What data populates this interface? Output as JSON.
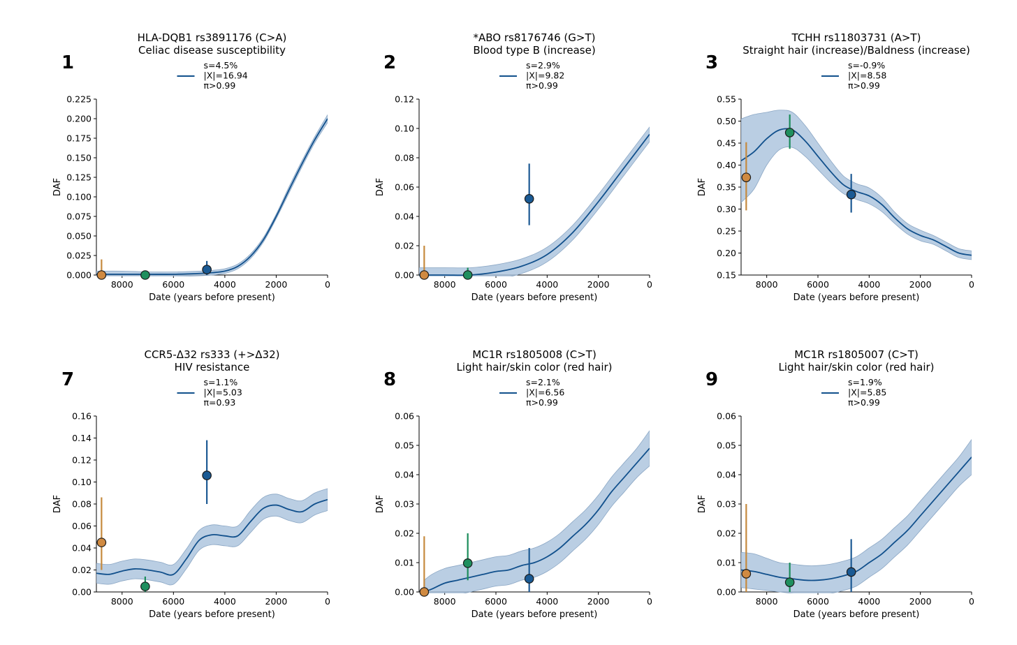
{
  "figure": {
    "xlabel": "Date (years before present)",
    "ylabel": "DAF",
    "band_color": "#a9c2dc",
    "line_color": "#11508c",
    "point_colors": [
      "#d08a41",
      "#1f8f5e",
      "#1a5a94"
    ],
    "errorbar_colors": [
      "#c68a3e",
      "#1b8c5a",
      "#1d5a94"
    ]
  },
  "chart_data": [
    {
      "type": "line",
      "panel_label": "1",
      "title": [
        "HLA-DQB1 rs3891176 (C>A)",
        "Celiac disease susceptibility"
      ],
      "legend": [
        "s=4.5%",
        "|X|=16.94",
        "π>0.99"
      ],
      "xlabel": "Date (years before present)",
      "ylabel": "DAF",
      "xlim": [
        9000,
        0
      ],
      "ylim": [
        0,
        0.225
      ],
      "xticks": [
        8000,
        6000,
        4000,
        2000,
        0
      ],
      "yticks": [
        "0.000",
        "0.025",
        "0.050",
        "0.075",
        "0.100",
        "0.125",
        "0.150",
        "0.175",
        "0.200",
        "0.225"
      ],
      "series": [
        {
          "name": "trajectory",
          "x": [
            9000,
            8000,
            7000,
            6000,
            5000,
            4500,
            4000,
            3500,
            3000,
            2500,
            2000,
            1500,
            1000,
            500,
            0
          ],
          "y": [
            0.001,
            0.001,
            0.001,
            0.001,
            0.002,
            0.003,
            0.005,
            0.011,
            0.024,
            0.045,
            0.075,
            0.109,
            0.142,
            0.173,
            0.2
          ],
          "band": [
            0.004,
            0.004,
            0.003,
            0.003,
            0.003,
            0.003,
            0.003,
            0.003,
            0.003,
            0.003,
            0.003,
            0.004,
            0.004,
            0.004,
            0.005
          ]
        }
      ],
      "points": [
        {
          "x": 8800,
          "y": 0.0,
          "err": [
            0.0,
            0.02
          ]
        },
        {
          "x": 7100,
          "y": 0.0,
          "err": [
            0.0,
            0.0
          ]
        },
        {
          "x": 4700,
          "y": 0.007,
          "err": [
            0.0,
            0.018
          ]
        }
      ]
    },
    {
      "type": "line",
      "panel_label": "2",
      "title": [
        "*ABO rs8176746 (G>T)",
        "Blood type B (increase)"
      ],
      "legend": [
        "s=2.9%",
        "|X|=9.82",
        "π>0.99"
      ],
      "xlabel": "Date (years before present)",
      "ylabel": "DAF",
      "xlim": [
        9000,
        0
      ],
      "ylim": [
        0,
        0.12
      ],
      "xticks": [
        8000,
        6000,
        4000,
        2000,
        0
      ],
      "yticks": [
        "0.00",
        "0.02",
        "0.04",
        "0.06",
        "0.08",
        "0.10",
        "0.12"
      ],
      "series": [
        {
          "name": "trajectory",
          "x": [
            9000,
            8000,
            7000,
            6000,
            5000,
            4000,
            3000,
            2000,
            1000,
            0
          ],
          "y": [
            0.0,
            0.0,
            0.0,
            0.002,
            0.006,
            0.014,
            0.029,
            0.05,
            0.073,
            0.096
          ],
          "band": [
            0.005,
            0.005,
            0.005,
            0.005,
            0.005,
            0.005,
            0.005,
            0.005,
            0.005,
            0.005
          ]
        }
      ],
      "points": [
        {
          "x": 8800,
          "y": 0.0,
          "err": [
            0.0,
            0.02
          ]
        },
        {
          "x": 7100,
          "y": 0.0,
          "err": [
            0.0,
            0.005
          ]
        },
        {
          "x": 4700,
          "y": 0.052,
          "err": [
            0.034,
            0.076
          ]
        }
      ]
    },
    {
      "type": "line",
      "panel_label": "3",
      "title": [
        "TCHH rs11803731 (A>T)",
        "Straight hair (increase)/Baldness (increase)"
      ],
      "legend": [
        "s=-0.9%",
        "|X|=8.58",
        "π>0.99"
      ],
      "xlabel": "Date (years before present)",
      "ylabel": "DAF",
      "xlim": [
        9000,
        0
      ],
      "ylim": [
        0.15,
        0.55
      ],
      "xticks": [
        8000,
        6000,
        4000,
        2000,
        0
      ],
      "yticks": [
        "0.15",
        "0.20",
        "0.25",
        "0.30",
        "0.35",
        "0.40",
        "0.45",
        "0.50",
        "0.55"
      ],
      "series": [
        {
          "name": "trajectory",
          "x": [
            9000,
            8500,
            8000,
            7500,
            7000,
            6500,
            6000,
            5500,
            5000,
            4500,
            4000,
            3500,
            3000,
            2500,
            2000,
            1500,
            1000,
            500,
            0
          ],
          "y": [
            0.41,
            0.43,
            0.46,
            0.48,
            0.48,
            0.455,
            0.42,
            0.385,
            0.355,
            0.34,
            0.33,
            0.31,
            0.28,
            0.255,
            0.24,
            0.23,
            0.215,
            0.2,
            0.195
          ],
          "band": [
            0.095,
            0.085,
            0.06,
            0.045,
            0.04,
            0.035,
            0.03,
            0.025,
            0.02,
            0.018,
            0.018,
            0.016,
            0.013,
            0.012,
            0.012,
            0.01,
            0.01,
            0.01,
            0.01
          ]
        }
      ],
      "points": [
        {
          "x": 8800,
          "y": 0.372,
          "err": [
            0.297,
            0.452
          ]
        },
        {
          "x": 7100,
          "y": 0.474,
          "err": [
            0.437,
            0.515
          ]
        },
        {
          "x": 4700,
          "y": 0.333,
          "err": [
            0.292,
            0.38
          ]
        }
      ]
    },
    {
      "type": "line",
      "panel_label": "7",
      "title": [
        "CCR5-Δ32 rs333 (+>Δ32)",
        "HIV resistance"
      ],
      "legend": [
        "s=1.1%",
        "|X|=5.03",
        "π=0.93"
      ],
      "xlabel": "Date (years before present)",
      "ylabel": "DAF",
      "xlim": [
        9000,
        0
      ],
      "ylim": [
        0,
        0.16
      ],
      "xticks": [
        8000,
        6000,
        4000,
        2000,
        0
      ],
      "yticks": [
        "0.00",
        "0.02",
        "0.04",
        "0.06",
        "0.08",
        "0.10",
        "0.12",
        "0.14",
        "0.16"
      ],
      "series": [
        {
          "name": "trajectory",
          "x": [
            9000,
            8500,
            8000,
            7500,
            7000,
            6500,
            6000,
            5500,
            5000,
            4500,
            4000,
            3500,
            3000,
            2500,
            2000,
            1500,
            1000,
            500,
            0
          ],
          "y": [
            0.017,
            0.016,
            0.019,
            0.021,
            0.02,
            0.018,
            0.016,
            0.03,
            0.047,
            0.052,
            0.051,
            0.051,
            0.064,
            0.076,
            0.079,
            0.075,
            0.073,
            0.08,
            0.084
          ],
          "band": [
            0.009,
            0.009,
            0.009,
            0.009,
            0.009,
            0.009,
            0.009,
            0.009,
            0.009,
            0.009,
            0.009,
            0.009,
            0.01,
            0.01,
            0.01,
            0.01,
            0.01,
            0.01,
            0.01
          ]
        }
      ],
      "points": [
        {
          "x": 8800,
          "y": 0.045,
          "err": [
            0.02,
            0.086
          ]
        },
        {
          "x": 7100,
          "y": 0.005,
          "err": [
            0.0,
            0.014
          ]
        },
        {
          "x": 4700,
          "y": 0.106,
          "err": [
            0.08,
            0.138
          ]
        }
      ]
    },
    {
      "type": "line",
      "panel_label": "8",
      "title": [
        "MC1R rs1805008 (C>T)",
        "Light hair/skin color (red hair)"
      ],
      "legend": [
        "s=2.1%",
        "|X|=6.56",
        "π>0.99"
      ],
      "xlabel": "Date (years before present)",
      "ylabel": "DAF",
      "xlim": [
        9000,
        0
      ],
      "ylim": [
        0,
        0.06
      ],
      "xticks": [
        8000,
        6000,
        4000,
        2000,
        0
      ],
      "yticks": [
        "0.00",
        "0.01",
        "0.02",
        "0.03",
        "0.04",
        "0.05",
        "0.06"
      ],
      "series": [
        {
          "name": "trajectory",
          "x": [
            8800,
            8500,
            8000,
            7500,
            7000,
            6500,
            6000,
            5500,
            5000,
            4500,
            4000,
            3500,
            3000,
            2500,
            2000,
            1500,
            1000,
            500,
            0
          ],
          "y": [
            0.0,
            0.001,
            0.003,
            0.004,
            0.005,
            0.006,
            0.007,
            0.0075,
            0.009,
            0.01,
            0.012,
            0.015,
            0.019,
            0.023,
            0.028,
            0.034,
            0.039,
            0.044,
            0.049
          ],
          "band": [
            0.004,
            0.005,
            0.005,
            0.005,
            0.005,
            0.005,
            0.005,
            0.005,
            0.005,
            0.005,
            0.005,
            0.005,
            0.005,
            0.005,
            0.005,
            0.005,
            0.005,
            0.005,
            0.006
          ]
        }
      ],
      "points": [
        {
          "x": 8800,
          "y": 0.0,
          "err": [
            0.0,
            0.019
          ]
        },
        {
          "x": 7100,
          "y": 0.0098,
          "err": [
            0.004,
            0.02
          ]
        },
        {
          "x": 4700,
          "y": 0.0045,
          "err": [
            0.0,
            0.015
          ]
        }
      ]
    },
    {
      "type": "line",
      "panel_label": "9",
      "title": [
        "MC1R rs1805007 (C>T)",
        "Light hair/skin color (red hair)"
      ],
      "legend": [
        "s=1.9%",
        "|X|=5.85",
        "π>0.99"
      ],
      "xlabel": "Date (years before present)",
      "ylabel": "DAF",
      "xlim": [
        9000,
        0
      ],
      "ylim": [
        0,
        0.06
      ],
      "xticks": [
        8000,
        6000,
        4000,
        2000,
        0
      ],
      "yticks": [
        "0.00",
        "0.01",
        "0.02",
        "0.03",
        "0.04",
        "0.05",
        "0.06"
      ],
      "series": [
        {
          "name": "trajectory",
          "x": [
            9000,
            8500,
            8000,
            7500,
            7000,
            6500,
            6000,
            5500,
            5000,
            4500,
            4000,
            3500,
            3000,
            2500,
            2000,
            1500,
            1000,
            500,
            0
          ],
          "y": [
            0.0075,
            0.007,
            0.006,
            0.005,
            0.0045,
            0.004,
            0.004,
            0.0045,
            0.0055,
            0.007,
            0.01,
            0.013,
            0.017,
            0.021,
            0.026,
            0.031,
            0.036,
            0.041,
            0.046
          ],
          "band": [
            0.006,
            0.006,
            0.0055,
            0.005,
            0.005,
            0.005,
            0.005,
            0.005,
            0.005,
            0.005,
            0.005,
            0.005,
            0.005,
            0.005,
            0.005,
            0.005,
            0.005,
            0.005,
            0.006
          ]
        }
      ],
      "points": [
        {
          "x": 8800,
          "y": 0.0062,
          "err": [
            0.0,
            0.03
          ]
        },
        {
          "x": 7100,
          "y": 0.0033,
          "err": [
            0.0,
            0.01
          ]
        },
        {
          "x": 4700,
          "y": 0.0068,
          "err": [
            0.0,
            0.018
          ]
        }
      ]
    }
  ]
}
